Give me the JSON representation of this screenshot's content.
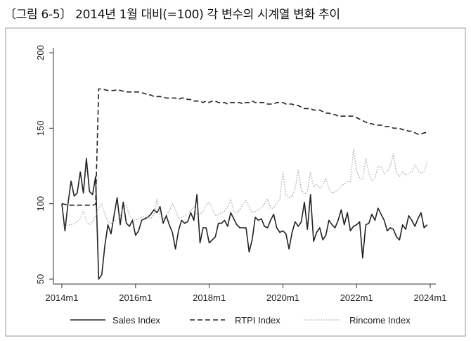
{
  "figure_title": "〔그림 6-5〕 2014년 1월 대비(=100) 각 변수의 시계열 변화 추이",
  "chart_data": {
    "type": "line",
    "title": "〔그림 6-5〕 2014년 1월 대비(=100) 각 변수의 시계열 변화 추이",
    "xlabel": "",
    "ylabel": "",
    "x_start": "2014m1",
    "x_frequency": "monthly",
    "xlim": [
      0,
      120
    ],
    "ylim": [
      50,
      200
    ],
    "x_ticks": [
      {
        "pos": 0,
        "label": "2014m1"
      },
      {
        "pos": 24,
        "label": "2016m1"
      },
      {
        "pos": 48,
        "label": "2018m1"
      },
      {
        "pos": 72,
        "label": "2020m1"
      },
      {
        "pos": 96,
        "label": "2022m1"
      },
      {
        "pos": 120,
        "label": "2024m1"
      }
    ],
    "y_ticks": [
      {
        "value": 50,
        "label": "50"
      },
      {
        "value": 100,
        "label": "100"
      },
      {
        "value": 150,
        "label": "150"
      },
      {
        "value": 200,
        "label": "200"
      }
    ],
    "grid": false,
    "legend_position": "bottom",
    "series": [
      {
        "name": "Sales Index",
        "style": "solid",
        "color": "#222222",
        "values": [
          100,
          82,
          100,
          115,
          105,
          107,
          121,
          107,
          130,
          108,
          106,
          118,
          50,
          53,
          72,
          86,
          80,
          92,
          104,
          86,
          101,
          87,
          85,
          89,
          79,
          82,
          89,
          90,
          91,
          93,
          96,
          94,
          98,
          87,
          92,
          86,
          81,
          70,
          82,
          89,
          87,
          88,
          94,
          89,
          106,
          74,
          84,
          84,
          74,
          76,
          78,
          87,
          87,
          89,
          85,
          94,
          90,
          86,
          84,
          84,
          84,
          68,
          76,
          91,
          89,
          90,
          85,
          84,
          89,
          93,
          84,
          81,
          82,
          80,
          70,
          81,
          88,
          85,
          88,
          101,
          83,
          106,
          75,
          81,
          84,
          76,
          79,
          89,
          86,
          84,
          89,
          96,
          86,
          94,
          82,
          85,
          86,
          88,
          64,
          86,
          87,
          93,
          89,
          97,
          93,
          89,
          82,
          84,
          83,
          78,
          76,
          86,
          83,
          92,
          89,
          85,
          90,
          94,
          84,
          86
        ]
      },
      {
        "name": "RTPI Index",
        "style": "dashed",
        "color": "#222222",
        "values": [
          100,
          99.5,
          99,
          99,
          99,
          99,
          99,
          99,
          99,
          99,
          99,
          99.5,
          176,
          176,
          175.5,
          175,
          175,
          175,
          175.5,
          175,
          174.5,
          174,
          174,
          174,
          174,
          174,
          173.5,
          173,
          172,
          172,
          171,
          171,
          171,
          170.5,
          170,
          170,
          170,
          170,
          169,
          170,
          170,
          169,
          169,
          168,
          168,
          168,
          167,
          168,
          167,
          168,
          168,
          167,
          167,
          167,
          166,
          167,
          167,
          167,
          167,
          166,
          167,
          167,
          168,
          167,
          167,
          167,
          167,
          166,
          166,
          166,
          167,
          167,
          167,
          166,
          166,
          166,
          165,
          165,
          164,
          163,
          163,
          163,
          162,
          162,
          162,
          161,
          160,
          160,
          159,
          159,
          158,
          158,
          158,
          158,
          158,
          158,
          157,
          156,
          155,
          154,
          153,
          153,
          152,
          152,
          152,
          151,
          151,
          151,
          150,
          150,
          150,
          149,
          149,
          148,
          148,
          147,
          146,
          146,
          147,
          147
        ]
      },
      {
        "name": "Rincome Index",
        "style": "dotted",
        "color": "#aaaaaa",
        "values": [
          85,
          85,
          86,
          86,
          87,
          88,
          90,
          95,
          88,
          86,
          88,
          92,
          97,
          100,
          93,
          88,
          87,
          88,
          90,
          92,
          97,
          99,
          92,
          90,
          89,
          90,
          91,
          92,
          91,
          90,
          93,
          103,
          91,
          90,
          92,
          95,
          100,
          96,
          90,
          91,
          92,
          93,
          95,
          98,
          93,
          93,
          95,
          99,
          101,
          97,
          92,
          93,
          94,
          95,
          98,
          103,
          95,
          94,
          96,
          100,
          102,
          98,
          94,
          95,
          96,
          97,
          100,
          103,
          97,
          97,
          100,
          103,
          121,
          106,
          104,
          105,
          110,
          122,
          109,
          106,
          108,
          121,
          111,
          113,
          110,
          112,
          117,
          110,
          107,
          108,
          109,
          112,
          113,
          115,
          114,
          136,
          122,
          117,
          116,
          130,
          120,
          115,
          117,
          125,
          124,
          120,
          121,
          125,
          133,
          120,
          118,
          121,
          119,
          120,
          121,
          126,
          122,
          120,
          121,
          128
        ]
      }
    ]
  }
}
